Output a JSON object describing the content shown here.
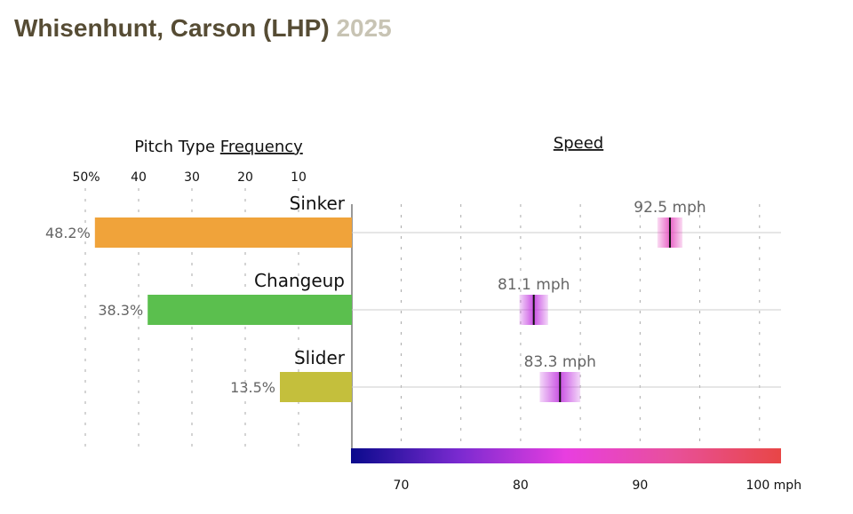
{
  "header": {
    "player": "Whisenhunt, Carson (LHP)",
    "season": "2025"
  },
  "chart_data": [
    {
      "type": "bar",
      "orientation": "horizontal-reversed",
      "title_prefix": "Pitch Type ",
      "title_link": "Frequency",
      "tick_labels": [
        "50%",
        "40",
        "30",
        "20",
        "10"
      ],
      "ticks": [
        50,
        40,
        30,
        20,
        10
      ],
      "xlim": [
        0,
        50
      ],
      "categories": [
        "Sinker",
        "Changeup",
        "Slider"
      ],
      "values": [
        48.2,
        38.3,
        13.5
      ],
      "value_labels": [
        "48.2%",
        "38.3%",
        "13.5%"
      ],
      "colors": [
        "#f0a33a",
        "#5bbf4e",
        "#c4bf3c"
      ]
    },
    {
      "type": "scatter",
      "title": "Speed",
      "categories": [
        "Sinker",
        "Changeup",
        "Slider"
      ],
      "values": [
        92.5,
        81.1,
        83.3
      ],
      "value_labels": [
        "92.5 mph",
        "81.1 mph",
        "83.3 mph"
      ],
      "spread_mph": [
        2.1,
        2.4,
        3.4
      ],
      "xlim": [
        65.8,
        101.8
      ],
      "ticks": [
        70,
        80,
        90,
        100
      ],
      "tick_labels": [
        "70",
        "80",
        "90",
        "100 mph"
      ],
      "grid": [
        70,
        75,
        80,
        85,
        90,
        95,
        100
      ],
      "colorscale": [
        "#0a0a8c",
        "#7a2ad0",
        "#e83ee0",
        "#e8509a",
        "#e84646"
      ]
    }
  ]
}
